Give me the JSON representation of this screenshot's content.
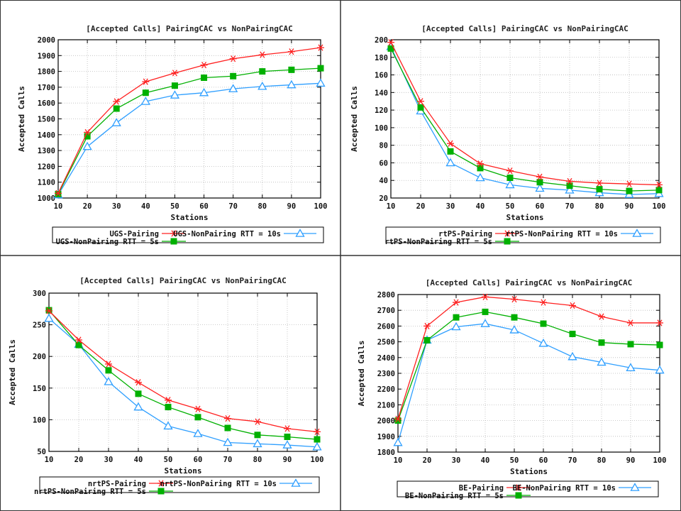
{
  "colors": {
    "pairing": "#ff2020",
    "nonpairing10": "#2f9fff",
    "nonpairing5": "#00b000",
    "border": "#333333",
    "grid": "#bbbbbb"
  },
  "chart_data": [
    {
      "type": "line",
      "title": "[Accepted Calls]  PairingCAC vs NonPairingCAC",
      "xlabel": "Stations",
      "ylabel": "Accepted Calls",
      "x": [
        10,
        20,
        30,
        40,
        50,
        60,
        70,
        80,
        90,
        100
      ],
      "xlim": [
        10,
        100
      ],
      "ylim": [
        1000,
        2000
      ],
      "yticks": [
        1000,
        1100,
        1200,
        1300,
        1400,
        1500,
        1600,
        1700,
        1800,
        1900,
        2000
      ],
      "grid": true,
      "legend_position": "bottom",
      "series": [
        {
          "name": "UGS-Pairing",
          "marker": "star",
          "color_key": "pairing",
          "values": [
            1030,
            1415,
            1610,
            1735,
            1790,
            1840,
            1880,
            1905,
            1925,
            1950
          ]
        },
        {
          "name": "UGS-NonPairing RTT = 10s",
          "marker": "triangle",
          "color_key": "nonpairing10",
          "values": [
            1020,
            1325,
            1475,
            1610,
            1650,
            1665,
            1690,
            1705,
            1715,
            1725
          ]
        },
        {
          "name": "UGS-NonPairing RTT = 5s",
          "marker": "square",
          "color_key": "nonpairing5",
          "values": [
            1025,
            1390,
            1565,
            1665,
            1710,
            1760,
            1770,
            1800,
            1810,
            1820
          ]
        }
      ]
    },
    {
      "type": "line",
      "title": "[Accepted Calls]  PairingCAC vs NonPairingCAC",
      "xlabel": "Stations",
      "ylabel": "Accepted Calls",
      "x": [
        10,
        20,
        30,
        40,
        50,
        60,
        70,
        80,
        90,
        100
      ],
      "xlim": [
        10,
        100
      ],
      "ylim": [
        20,
        200
      ],
      "yticks": [
        20,
        40,
        60,
        80,
        100,
        120,
        140,
        160,
        180,
        200
      ],
      "grid": true,
      "legend_position": "bottom",
      "series": [
        {
          "name": "rtPS-Pairing",
          "marker": "star",
          "color_key": "pairing",
          "values": [
            197,
            130,
            82,
            59,
            51,
            44,
            39,
            37,
            36,
            35
          ]
        },
        {
          "name": "rtPS-NonPairing RTT = 10s",
          "marker": "triangle",
          "color_key": "nonpairing10",
          "values": [
            192,
            119,
            60,
            43,
            35,
            31,
            29,
            26,
            24,
            25
          ]
        },
        {
          "name": "rtPS-NonPairing RTT = 5s",
          "marker": "square",
          "color_key": "nonpairing5",
          "values": [
            190,
            123,
            73,
            54,
            43,
            38,
            34,
            30,
            28,
            29
          ]
        }
      ]
    },
    {
      "type": "line",
      "title": "[Accepted Calls]  PairingCAC vs NonPairingCAC",
      "xlabel": "Stations",
      "ylabel": "Accepted Calls",
      "x": [
        10,
        20,
        30,
        40,
        50,
        60,
        70,
        80,
        90,
        100
      ],
      "xlim": [
        10,
        100
      ],
      "ylim": [
        50,
        300
      ],
      "yticks": [
        50,
        100,
        150,
        200,
        250,
        300
      ],
      "grid": true,
      "legend_position": "bottom",
      "series": [
        {
          "name": "nrtPS-Pairing",
          "marker": "star",
          "color_key": "pairing",
          "values": [
            272,
            226,
            188,
            159,
            131,
            117,
            102,
            97,
            86,
            81
          ]
        },
        {
          "name": "nrtPS-NonPairing RTT = 10s",
          "marker": "triangle",
          "color_key": "nonpairing10",
          "values": [
            260,
            219,
            160,
            120,
            90,
            78,
            64,
            62,
            60,
            57
          ]
        },
        {
          "name": "nrtPS-NonPairing RTT = 5s",
          "marker": "square",
          "color_key": "nonpairing5",
          "values": [
            273,
            218,
            178,
            141,
            120,
            104,
            87,
            76,
            73,
            69
          ]
        }
      ]
    },
    {
      "type": "line",
      "title": "[Accepted Calls]  PairingCAC vs NonPairingCAC",
      "xlabel": "Stations",
      "ylabel": "Accepted Calls",
      "x": [
        10,
        20,
        30,
        40,
        50,
        60,
        70,
        80,
        90,
        100
      ],
      "xlim": [
        10,
        100
      ],
      "ylim": [
        1800,
        2800
      ],
      "yticks": [
        1800,
        1900,
        2000,
        2100,
        2200,
        2300,
        2400,
        2500,
        2600,
        2700,
        2800
      ],
      "grid": true,
      "legend_position": "bottom",
      "series": [
        {
          "name": "BE-Pairing",
          "marker": "star",
          "color_key": "pairing",
          "values": [
            2010,
            2600,
            2750,
            2785,
            2770,
            2750,
            2730,
            2660,
            2620,
            2620
          ]
        },
        {
          "name": "BE-NonPairing RTT = 10s",
          "marker": "triangle",
          "color_key": "nonpairing10",
          "values": [
            1860,
            2510,
            2595,
            2615,
            2575,
            2490,
            2405,
            2370,
            2335,
            2320
          ]
        },
        {
          "name": "BE-NonPairing RTT = 5s",
          "marker": "square",
          "color_key": "nonpairing5",
          "values": [
            2000,
            2510,
            2655,
            2690,
            2655,
            2615,
            2550,
            2495,
            2485,
            2480
          ]
        }
      ]
    }
  ]
}
